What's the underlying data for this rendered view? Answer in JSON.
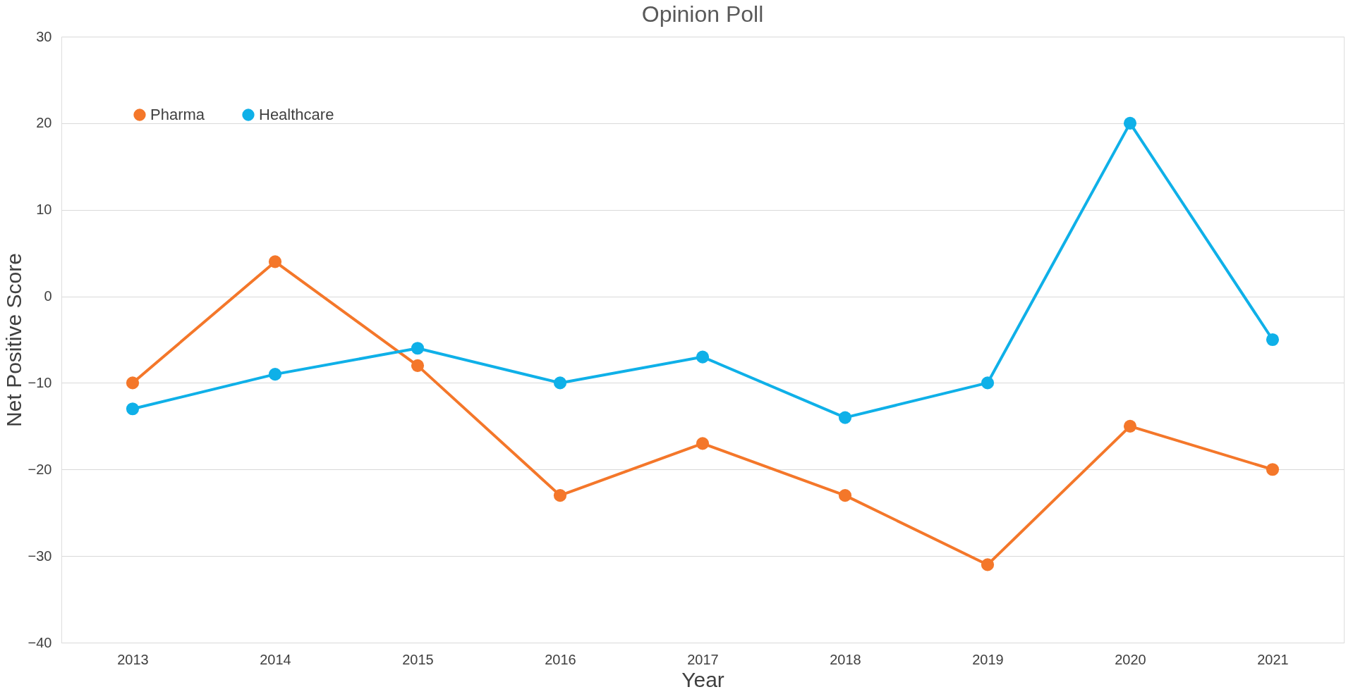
{
  "chart_data": {
    "type": "line",
    "title": "Opinion Poll",
    "xlabel": "Year",
    "ylabel": "Net Positive Score",
    "categories": [
      "2013",
      "2014",
      "2015",
      "2016",
      "2017",
      "2018",
      "2019",
      "2020",
      "2021"
    ],
    "series": [
      {
        "name": "Pharma",
        "color": "#f4772a",
        "values": [
          -10,
          4,
          -8,
          -23,
          -17,
          -23,
          -31,
          -15,
          -20
        ]
      },
      {
        "name": "Healthcare",
        "color": "#0fb0e8",
        "values": [
          -13,
          -9,
          -6,
          -10,
          -7,
          -14,
          -10,
          20,
          -5
        ]
      }
    ],
    "ylim": [
      -40,
      30
    ],
    "yticks": [
      -40,
      -30,
      -20,
      -10,
      0,
      10,
      20,
      30
    ],
    "grid": "y",
    "legend": "top left",
    "marker": "circle",
    "line_style": "solid"
  }
}
